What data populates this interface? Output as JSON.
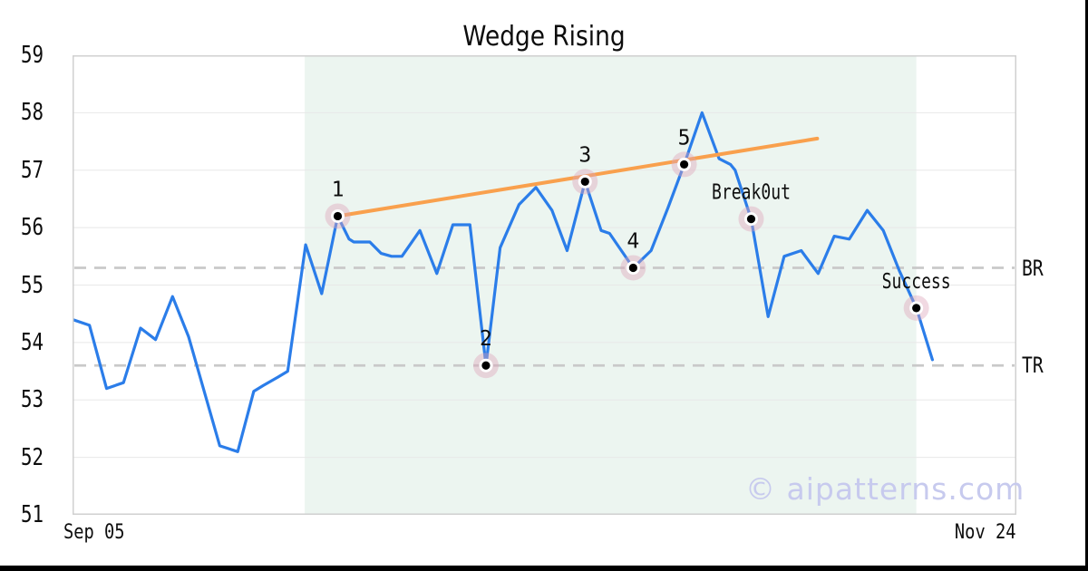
{
  "chart_data": {
    "type": "line",
    "title": "Wedge Rising",
    "x_tick_labels": {
      "left": "Sep 05",
      "right": "Nov 24"
    },
    "ylim": [
      51,
      59
    ],
    "yticks": [
      51,
      52,
      53,
      54,
      55,
      56,
      57,
      58,
      59
    ],
    "grid": "horizontal",
    "legend": "none",
    "watermark": "© aipatterns.com",
    "pattern_zone": {
      "x_from_pct": 24.6,
      "x_to_pct": 89.4
    },
    "levels": [
      {
        "label": "BR",
        "value": 55.3
      },
      {
        "label": "TR",
        "value": 53.6
      }
    ],
    "trendline": {
      "from": {
        "x_pct": 28.1,
        "value": 56.2
      },
      "to": {
        "x_pct": 78.9,
        "value": 57.55
      }
    },
    "series": [
      {
        "name": "price",
        "points": [
          [
            0.0,
            54.4
          ],
          [
            1.8,
            54.3
          ],
          [
            3.6,
            53.2
          ],
          [
            5.4,
            53.3
          ],
          [
            7.2,
            54.25
          ],
          [
            8.8,
            54.05
          ],
          [
            10.6,
            54.8
          ],
          [
            12.3,
            54.1
          ],
          [
            15.6,
            52.2
          ],
          [
            17.5,
            52.1
          ],
          [
            19.2,
            53.15
          ],
          [
            20.2,
            53.25
          ],
          [
            21.8,
            53.4
          ],
          [
            22.8,
            53.5
          ],
          [
            24.7,
            55.7
          ],
          [
            26.4,
            54.85
          ],
          [
            28.1,
            56.2
          ],
          [
            29.3,
            55.8
          ],
          [
            29.8,
            55.75
          ],
          [
            31.5,
            55.75
          ],
          [
            32.7,
            55.55
          ],
          [
            33.8,
            55.5
          ],
          [
            34.9,
            55.5
          ],
          [
            36.8,
            55.95
          ],
          [
            38.6,
            55.2
          ],
          [
            40.3,
            56.05
          ],
          [
            42.1,
            56.05
          ],
          [
            43.8,
            53.6
          ],
          [
            45.3,
            55.65
          ],
          [
            47.3,
            56.4
          ],
          [
            49.1,
            56.7
          ],
          [
            50.8,
            56.3
          ],
          [
            52.4,
            55.6
          ],
          [
            54.3,
            56.8
          ],
          [
            56.0,
            55.95
          ],
          [
            56.9,
            55.9
          ],
          [
            59.4,
            55.3
          ],
          [
            61.3,
            55.6
          ],
          [
            63.1,
            56.35
          ],
          [
            64.8,
            57.1
          ],
          [
            66.7,
            58.0
          ],
          [
            68.5,
            57.2
          ],
          [
            69.7,
            57.1
          ],
          [
            70.2,
            57.0
          ],
          [
            71.9,
            56.15
          ],
          [
            73.7,
            54.45
          ],
          [
            75.4,
            55.5
          ],
          [
            77.2,
            55.6
          ],
          [
            79.0,
            55.2
          ],
          [
            80.7,
            55.85
          ],
          [
            82.3,
            55.8
          ],
          [
            84.2,
            56.3
          ],
          [
            85.9,
            55.95
          ],
          [
            87.6,
            55.25
          ],
          [
            89.4,
            54.6
          ],
          [
            91.1,
            53.7
          ]
        ]
      }
    ],
    "markers": [
      {
        "label": "1",
        "point_index": 16
      },
      {
        "label": "2",
        "point_index": 27
      },
      {
        "label": "3",
        "point_index": 33
      },
      {
        "label": "4",
        "point_index": 36
      },
      {
        "label": "5",
        "point_index": 39
      },
      {
        "label": "Break0ut",
        "point_index": 44
      },
      {
        "label": "Success",
        "point_index": 54
      }
    ],
    "colors": {
      "line": "#2b7de9",
      "trendline": "#f9a04d",
      "pattern_zone": "#ecf5f0",
      "marker_halo": "rgba(222,165,185,0.42)",
      "marker_ring": "#ffffff",
      "marker_dot": "#000000",
      "dashed_level": "#c9c9c9",
      "grid": "#e8e8e8",
      "border": "#d0d0d0",
      "text": "#0d0d0d",
      "watermark": "#c7caee",
      "edge_bars": "#000000"
    }
  }
}
